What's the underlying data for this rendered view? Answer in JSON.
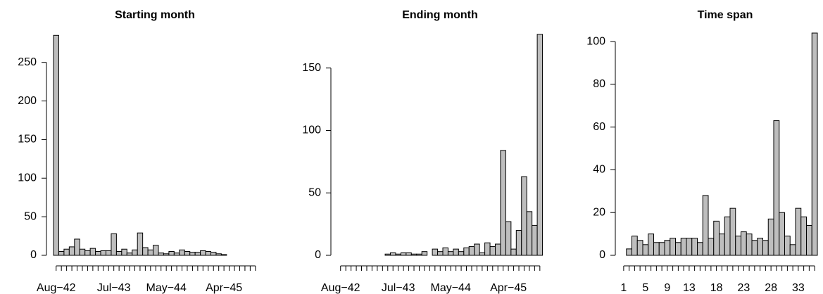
{
  "chart_data": [
    {
      "type": "bar",
      "title": "Starting month",
      "color": "#bebebe",
      "categories": [
        "Aug−42",
        null,
        null,
        null,
        null,
        null,
        null,
        null,
        null,
        null,
        null,
        "Jul−43",
        null,
        null,
        null,
        null,
        null,
        null,
        null,
        null,
        null,
        "May−44",
        null,
        null,
        null,
        null,
        null,
        null,
        null,
        null,
        null,
        null,
        "Apr−45",
        null,
        null,
        null,
        null,
        null,
        null
      ],
      "values": [
        285,
        5,
        8,
        11,
        21,
        8,
        6,
        9,
        5,
        6,
        6,
        28,
        5,
        8,
        3,
        7,
        29,
        10,
        7,
        13,
        3,
        2,
        5,
        3,
        7,
        5,
        4,
        4,
        6,
        5,
        4,
        2,
        1,
        0,
        0,
        0,
        0,
        0,
        0
      ],
      "ylim": [
        0,
        288
      ],
      "yticks": [
        0,
        50,
        100,
        150,
        200,
        250
      ]
    },
    {
      "type": "bar",
      "title": "Ending month",
      "color": "#bebebe",
      "categories": [
        "Aug−42",
        null,
        null,
        null,
        null,
        null,
        null,
        null,
        null,
        null,
        null,
        "Jul−43",
        null,
        null,
        null,
        null,
        null,
        null,
        null,
        null,
        null,
        "May−44",
        null,
        null,
        null,
        null,
        null,
        null,
        null,
        null,
        null,
        null,
        "Apr−45",
        null,
        null,
        null,
        null,
        null,
        null
      ],
      "values": [
        0,
        0,
        0,
        0,
        0,
        0,
        0,
        0,
        0,
        1,
        2,
        1,
        2,
        2,
        1,
        1,
        3,
        0,
        5,
        3,
        6,
        3,
        5,
        3,
        6,
        7,
        9,
        2,
        10,
        7,
        9,
        84,
        27,
        5,
        20,
        63,
        35,
        24,
        177
      ],
      "ylim": [
        0,
        178
      ],
      "yticks": [
        0,
        50,
        100,
        150
      ]
    },
    {
      "type": "bar",
      "title": "Time span",
      "color": "#bebebe",
      "categories": [
        "1",
        null,
        null,
        null,
        "5",
        null,
        null,
        null,
        "9",
        null,
        null,
        null,
        "13",
        null,
        null,
        null,
        null,
        "18",
        null,
        null,
        null,
        null,
        "23",
        null,
        null,
        null,
        null,
        "28",
        null,
        null,
        null,
        null,
        "33",
        null,
        null,
        null
      ],
      "values": [
        0,
        3,
        9,
        7,
        5,
        10,
        6,
        6,
        7,
        8,
        6,
        8,
        8,
        8,
        6,
        28,
        8,
        16,
        10,
        18,
        22,
        9,
        11,
        10,
        7,
        8,
        7,
        17,
        63,
        20,
        9,
        5,
        22,
        18,
        14,
        104
      ],
      "ylim": [
        0,
        104
      ],
      "yticks": [
        0,
        20,
        40,
        60,
        80,
        100
      ]
    }
  ]
}
